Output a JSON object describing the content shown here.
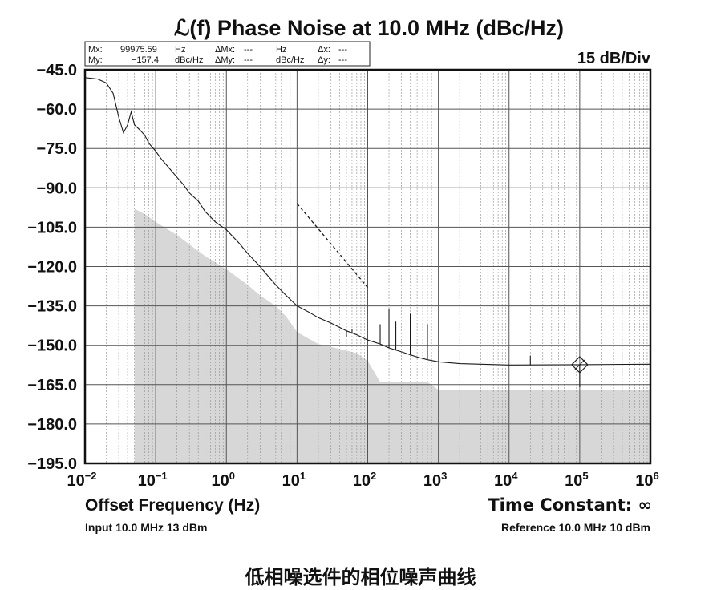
{
  "chart_data": {
    "type": "line",
    "title": "ℒ(f) Phase Noise at 10.0 MHz (dBc/Hz)",
    "scale_label": "15 dB/Div",
    "xlabel": "Offset Frequency (Hz)",
    "xscale": "log",
    "xlim": [
      0.01,
      1000000
    ],
    "ylim": [
      -195,
      -45
    ],
    "grid": true,
    "x_tick_labels": [
      {
        "base": "10",
        "exp": "−2",
        "value": 0.01
      },
      {
        "base": "10",
        "exp": "−1",
        "value": 0.1
      },
      {
        "base": "10",
        "exp": "0",
        "value": 1
      },
      {
        "base": "10",
        "exp": "1",
        "value": 10
      },
      {
        "base": "10",
        "exp": "2",
        "value": 100
      },
      {
        "base": "10",
        "exp": "3",
        "value": 1000
      },
      {
        "base": "10",
        "exp": "4",
        "value": 10000
      },
      {
        "base": "10",
        "exp": "5",
        "value": 100000
      },
      {
        "base": "10",
        "exp": "6",
        "value": 1000000
      }
    ],
    "y_tick_labels": [
      "−45.0",
      "−60.0",
      "−75.0",
      "−90.0",
      "−105.0",
      "−120.0",
      "−135.0",
      "−150.0",
      "−165.0",
      "−180.0",
      "−195.0"
    ],
    "y_tick_values": [
      -45,
      -60,
      -75,
      -90,
      -105,
      -120,
      -135,
      -150,
      -165,
      -180,
      -195
    ],
    "marker_readout": {
      "mx_label": "Mx:",
      "mx_value": "99975.59",
      "mx_unit": "Hz",
      "my_label": "My:",
      "my_value": "−157.4",
      "my_unit": "dBc/Hz",
      "dmx_label": "ΔMx:",
      "dmx_value": "---",
      "dmx_unit": "Hz",
      "dmy_label": "ΔMy:",
      "dmy_value": "---",
      "dmy_unit": "dBc/Hz",
      "dx_label": "Δx:",
      "dx_value": "---",
      "dy_label": "Δy:",
      "dy_value": "---"
    },
    "marker": {
      "x": 99975.59,
      "y": -157.4
    },
    "time_constant": "Time Constant: ∞",
    "input_info": "Input 10.0 MHz 13 dBm",
    "reference_info": "Reference 10.0 MHz 10 dBm",
    "series": [
      {
        "values": [
          [
            0.01,
            -48
          ],
          [
            0.015,
            -48.5
          ],
          [
            0.02,
            -50
          ],
          [
            0.025,
            -54
          ],
          [
            0.03,
            -63
          ],
          [
            0.035,
            -69
          ],
          [
            0.04,
            -66
          ],
          [
            0.045,
            -61
          ],
          [
            0.05,
            -66
          ],
          [
            0.06,
            -68
          ],
          [
            0.07,
            -70
          ],
          [
            0.08,
            -73
          ],
          [
            0.1,
            -76
          ],
          [
            0.12,
            -79
          ],
          [
            0.15,
            -82
          ],
          [
            0.2,
            -86
          ],
          [
            0.25,
            -89
          ],
          [
            0.3,
            -92
          ],
          [
            0.4,
            -95
          ],
          [
            0.5,
            -99
          ],
          [
            0.7,
            -103
          ],
          [
            1,
            -106
          ],
          [
            1.5,
            -111
          ],
          [
            2,
            -115
          ],
          [
            3,
            -120
          ],
          [
            4,
            -124
          ],
          [
            5,
            -127
          ],
          [
            7,
            -131
          ],
          [
            10,
            -135
          ],
          [
            15,
            -137.5
          ],
          [
            20,
            -139.5
          ],
          [
            30,
            -141.5
          ],
          [
            50,
            -144.5
          ],
          [
            70,
            -146
          ],
          [
            100,
            -148
          ],
          [
            150,
            -149.5
          ],
          [
            200,
            -151
          ],
          [
            300,
            -152.5
          ],
          [
            500,
            -154.5
          ],
          [
            700,
            -155.5
          ],
          [
            1000,
            -156.3
          ],
          [
            2000,
            -157
          ],
          [
            5000,
            -157.3
          ],
          [
            10000,
            -157.5
          ],
          [
            100000,
            -157.4
          ],
          [
            1000000,
            -157.2
          ]
        ],
        "spurs": [
          {
            "x": 50,
            "y": -147
          },
          {
            "x": 60,
            "y": -144
          },
          {
            "x": 150,
            "y": -142
          },
          {
            "x": 200,
            "y": -136
          },
          {
            "x": 250,
            "y": -141
          },
          {
            "x": 400,
            "y": -138
          },
          {
            "x": 700,
            "y": -142
          },
          {
            "x": 20000,
            "y": -154
          },
          {
            "x": 100000,
            "y": -166
          }
        ],
        "color": "#1a1a1a"
      }
    ],
    "dashed_reference": {
      "x": [
        10,
        100
      ],
      "y": [
        -96,
        -128
      ],
      "color": "#1a1a1a"
    },
    "noise_floor": {
      "values": [
        [
          0.05,
          -98
        ],
        [
          0.07,
          -100
        ],
        [
          0.1,
          -103
        ],
        [
          0.2,
          -108
        ],
        [
          0.5,
          -116
        ],
        [
          1,
          -121
        ],
        [
          2,
          -127
        ],
        [
          3,
          -131
        ],
        [
          5,
          -135
        ],
        [
          7,
          -139
        ],
        [
          10,
          -145
        ],
        [
          20,
          -149.5
        ],
        [
          50,
          -152
        ],
        [
          70,
          -153
        ],
        [
          100,
          -156
        ],
        [
          150,
          -164
        ],
        [
          300,
          -164
        ],
        [
          700,
          -164
        ],
        [
          1000,
          -167
        ],
        [
          10000,
          -167
        ],
        [
          100000,
          -167
        ],
        [
          1000000,
          -167
        ]
      ],
      "color": "#d7d7d7"
    }
  },
  "caption": "低相噪选件的相位噪声曲线"
}
